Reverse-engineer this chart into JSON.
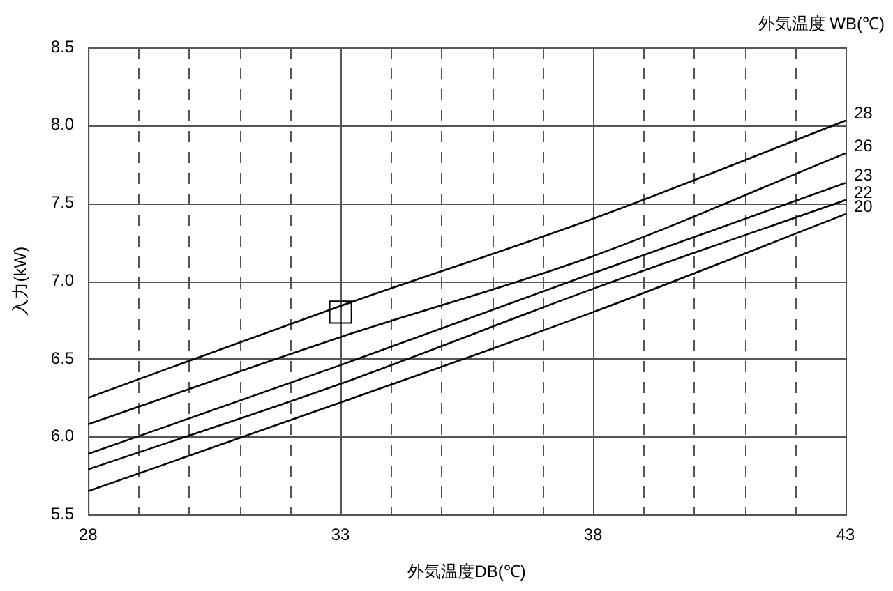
{
  "chart_data": {
    "type": "line",
    "xlabel": "外気温度DB(℃)",
    "ylabel": "入力(kW)",
    "legend_title": "外気温度 WB(℃)",
    "xlim": [
      28,
      43
    ],
    "ylim": [
      5.5,
      8.5
    ],
    "xticks": [
      28,
      {
        "value": 29,
        "label": null
      },
      {
        "value": 30,
        "label": null
      },
      {
        "value": 31,
        "label": null
      },
      {
        "value": 32,
        "label": null
      },
      33,
      {
        "value": 34,
        "label": null
      },
      {
        "value": 35,
        "label": null
      },
      {
        "value": 36,
        "label": null
      },
      {
        "value": 37,
        "label": null
      },
      38,
      {
        "value": 39,
        "label": null
      },
      {
        "value": 40,
        "label": null
      },
      {
        "value": 41,
        "label": null
      },
      {
        "value": 42,
        "label": null
      },
      43
    ],
    "yticks": [
      5.5,
      {
        "value": 6,
        "label": "6.0"
      },
      6.5,
      {
        "value": 7,
        "label": "7.0"
      },
      7.5,
      {
        "value": 8,
        "label": "8.0"
      },
      8.5
    ],
    "grid": true,
    "marker": "none",
    "line_style": "solid",
    "legend": false,
    "series": [
      {
        "name": "28",
        "color": "#000000",
        "x": [
          28,
          33,
          38,
          43
        ],
        "values": [
          6.25,
          6.84,
          7.4,
          8.03
        ]
      },
      {
        "name": "26",
        "color": "#000000",
        "x": [
          28,
          33,
          38,
          43
        ],
        "values": [
          6.08,
          6.64,
          7.16,
          7.82
        ]
      },
      {
        "name": "23",
        "color": "#000000",
        "x": [
          28,
          33,
          38,
          43
        ],
        "values": [
          5.89,
          6.46,
          7.05,
          7.63
        ]
      },
      {
        "name": "22",
        "color": "#000000",
        "x": [
          28,
          33,
          38,
          43
        ],
        "values": [
          5.79,
          6.34,
          6.95,
          7.52
        ]
      },
      {
        "name": "20",
        "color": "#000000",
        "x": [
          28,
          33,
          38,
          43
        ],
        "values": [
          5.65,
          6.22,
          6.8,
          7.43
        ]
      },
      {
        "type": "scatter",
        "marker": "square",
        "color": "#000000",
        "x": [
          33
        ],
        "values": [
          6.8
        ]
      }
    ]
  }
}
